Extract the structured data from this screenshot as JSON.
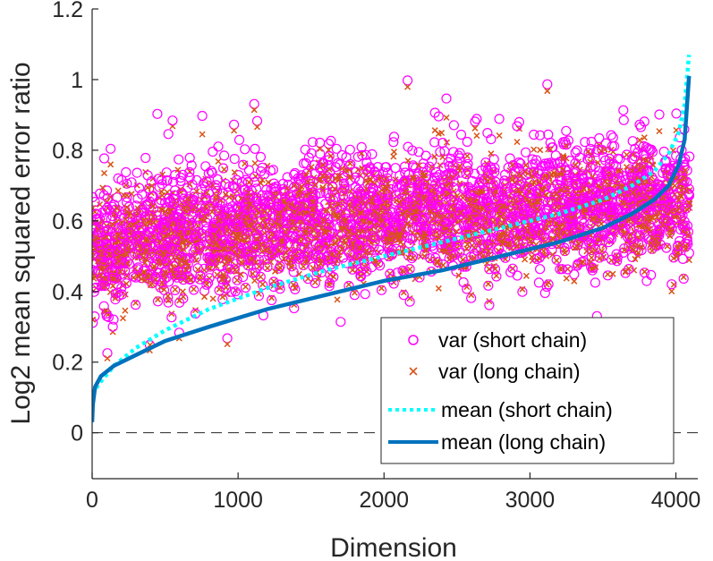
{
  "chart_data": {
    "type": "scatter",
    "title": "",
    "xlabel": "Dimension",
    "ylabel": "Log2 mean squared error ratio",
    "xlim": [
      0,
      4150
    ],
    "ylim": [
      -0.13,
      1.2
    ],
    "xticks": [
      "0",
      "1000",
      "2000",
      "3000",
      "4000"
    ],
    "xtick_values": [
      0,
      1000,
      2000,
      3000,
      4000
    ],
    "yticks": [
      "0",
      "0.2",
      "0.4",
      "0.6",
      "0.8",
      "1",
      "1.2"
    ],
    "ytick_values": [
      0,
      0.2,
      0.4,
      0.6,
      0.8,
      1.0,
      1.2
    ],
    "reference_line": {
      "y": 0,
      "style": "dashed"
    },
    "n_points": 4096,
    "series": [
      {
        "name": "var (short chain)",
        "marker": "circle",
        "color": "#ff00ff",
        "distribution": {
          "x_range": [
            0,
            4096
          ],
          "center_start": 0.45,
          "center_end": 0.68,
          "spread": 0.09
        }
      },
      {
        "name": "var (long chain)",
        "marker": "x",
        "color": "#d95319",
        "distribution": {
          "x_range": [
            0,
            4096
          ],
          "center_start": 0.44,
          "center_end": 0.66,
          "spread": 0.08
        }
      },
      {
        "name": "mean (short chain)",
        "line": "dotted",
        "color": "#00ffff",
        "x": [
          0,
          50,
          150,
          300,
          500,
          800,
          1200,
          1600,
          2000,
          2400,
          2800,
          3200,
          3500,
          3700,
          3850,
          3950,
          4020,
          4060,
          4090
        ],
        "y": [
          0.11,
          0.14,
          0.19,
          0.24,
          0.29,
          0.35,
          0.41,
          0.46,
          0.5,
          0.54,
          0.58,
          0.62,
          0.66,
          0.7,
          0.74,
          0.79,
          0.85,
          0.93,
          1.07
        ]
      },
      {
        "name": "mean (long chain)",
        "line": "solid",
        "color": "#0072bd",
        "x": [
          0,
          5,
          20,
          60,
          150,
          300,
          500,
          800,
          1200,
          1600,
          2000,
          2400,
          2800,
          3200,
          3500,
          3700,
          3850,
          3950,
          4020,
          4060,
          4090
        ],
        "y": [
          0.03,
          0.08,
          0.13,
          0.16,
          0.19,
          0.22,
          0.26,
          0.3,
          0.35,
          0.39,
          0.43,
          0.46,
          0.5,
          0.54,
          0.58,
          0.62,
          0.66,
          0.7,
          0.76,
          0.83,
          1.01
        ]
      }
    ],
    "legend": {
      "position": "bottom-right",
      "entries": [
        "var (short chain)",
        "var (long chain)",
        "mean (short chain)",
        "mean (long chain)"
      ]
    }
  },
  "colors": {
    "short_var": "#ff00ff",
    "long_var": "#d95319",
    "short_mean": "#00ffff",
    "long_mean": "#0072bd",
    "axis": "#262626"
  }
}
